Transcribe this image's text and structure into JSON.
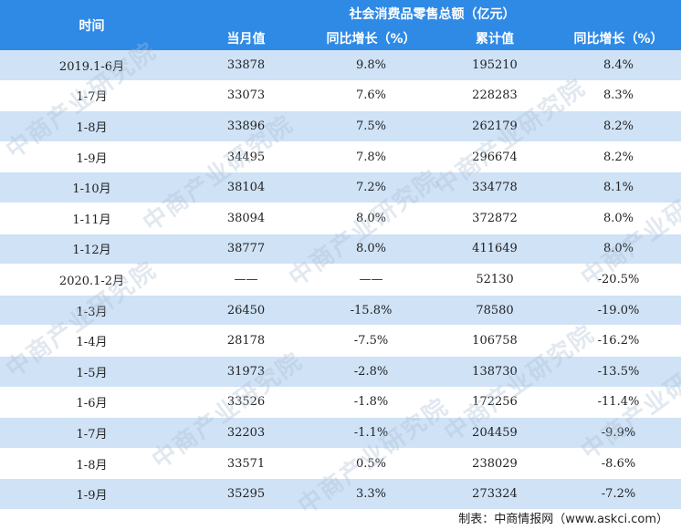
{
  "table": {
    "header": {
      "time": "时间",
      "group": "社会消费品零售总额（亿元）",
      "columns": [
        "当月值",
        "同比增长（%）",
        "累计值",
        "同比增长（%）"
      ]
    },
    "rows": [
      {
        "period": "2019.1-6月",
        "monthly": "33878",
        "monthly_yoy": "9.8%",
        "cumulative": "195210",
        "cumulative_yoy": "8.4%"
      },
      {
        "period": "1-7月",
        "monthly": "33073",
        "monthly_yoy": "7.6%",
        "cumulative": "228283",
        "cumulative_yoy": "8.3%"
      },
      {
        "period": "1-8月",
        "monthly": "33896",
        "monthly_yoy": "7.5%",
        "cumulative": "262179",
        "cumulative_yoy": "8.2%"
      },
      {
        "period": "1-9月",
        "monthly": "34495",
        "monthly_yoy": "7.8%",
        "cumulative": "296674",
        "cumulative_yoy": "8.2%"
      },
      {
        "period": "1-10月",
        "monthly": "38104",
        "monthly_yoy": "7.2%",
        "cumulative": "334778",
        "cumulative_yoy": "8.1%"
      },
      {
        "period": "1-11月",
        "monthly": "38094",
        "monthly_yoy": "8.0%",
        "cumulative": "372872",
        "cumulative_yoy": "8.0%"
      },
      {
        "period": "1-12月",
        "monthly": "38777",
        "monthly_yoy": "8.0%",
        "cumulative": "411649",
        "cumulative_yoy": "8.0%"
      },
      {
        "period": "2020.1-2月",
        "monthly": "——",
        "monthly_yoy": "——",
        "cumulative": "52130",
        "cumulative_yoy": "-20.5%"
      },
      {
        "period": "1-3月",
        "monthly": "26450",
        "monthly_yoy": "-15.8%",
        "cumulative": "78580",
        "cumulative_yoy": "-19.0%"
      },
      {
        "period": "1-4月",
        "monthly": "28178",
        "monthly_yoy": "-7.5%",
        "cumulative": "106758",
        "cumulative_yoy": "-16.2%"
      },
      {
        "period": "1-5月",
        "monthly": "31973",
        "monthly_yoy": "-2.8%",
        "cumulative": "138730",
        "cumulative_yoy": "-13.5%"
      },
      {
        "period": "1-6月",
        "monthly": "33526",
        "monthly_yoy": "-1.8%",
        "cumulative": "172256",
        "cumulative_yoy": "-11.4%"
      },
      {
        "period": "1-7月",
        "monthly": "32203",
        "monthly_yoy": "-1.1%",
        "cumulative": "204459",
        "cumulative_yoy": "-9.9%"
      },
      {
        "period": "1-8月",
        "monthly": "33571",
        "monthly_yoy": "0.5%",
        "cumulative": "238029",
        "cumulative_yoy": "-8.6%"
      },
      {
        "period": "1-9月",
        "monthly": "35295",
        "monthly_yoy": "3.3%",
        "cumulative": "273324",
        "cumulative_yoy": "-7.2%"
      }
    ]
  },
  "watermark": "中商产业研究院",
  "source": "制表：中商情报网（www.askci.com）",
  "colors": {
    "header_bg": "#2f8ae6",
    "stripe": "#cfe2f6",
    "header_text": "#ffffff"
  }
}
